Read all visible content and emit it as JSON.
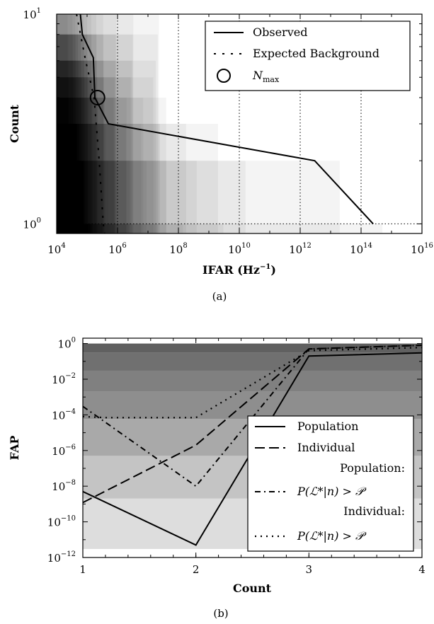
{
  "chart_data": [
    {
      "type": "line",
      "caption": "(a)",
      "xlabel": "IFAR (Hz",
      "xlabel_exp": "−1",
      "xlabel_close": ")",
      "ylabel": "Count",
      "x_scale": "log",
      "y_scale": "log",
      "xlim": [
        10000,
        1e+16
      ],
      "ylim": [
        0.9,
        10
      ],
      "x_ticks": [
        {
          "value": 10000,
          "base": "10",
          "exp": "4"
        },
        {
          "value": 1000000,
          "base": "10",
          "exp": "6"
        },
        {
          "value": 100000000,
          "base": "10",
          "exp": "8"
        },
        {
          "value": 10000000000,
          "base": "10",
          "exp": "10"
        },
        {
          "value": 1000000000000,
          "base": "10",
          "exp": "12"
        },
        {
          "value": 100000000000000,
          "base": "10",
          "exp": "14"
        },
        {
          "value": 1e+16,
          "base": "10",
          "exp": "16"
        }
      ],
      "y_ticks": [
        {
          "value": 1,
          "base": "10",
          "exp": "0"
        },
        {
          "value": 10,
          "base": "10",
          "exp": "1"
        }
      ],
      "vertical_dotted_lines": [
        1000000,
        100000000,
        10000000000,
        1000000000000,
        100000000000000
      ],
      "horizontal_dotted_lines": [
        1
      ],
      "background_bands": [
        {
          "x": [
            10000,
            50000,
            70000,
            80000,
            100000,
            130000,
            150000,
            190000,
            250000,
            330000,
            600000,
            1100000,
            2300000,
            6000000,
            20000000,
            140000000,
            3000000000,
            500000000000000
          ],
          "count_max": 1
        },
        {
          "x": [
            10000,
            40000,
            56000,
            67000,
            82000,
            100000,
            125000,
            155000,
            210000,
            310000,
            500000,
            1000000,
            2500000,
            9000000,
            40000000,
            400000000,
            16000000000,
            20000000000000
          ],
          "count_max": 2
        },
        {
          "x": [
            10000,
            33000,
            46000,
            56000,
            70000,
            85000,
            105000,
            135000,
            180000,
            260000,
            420000,
            800000,
            1900000,
            6000000,
            25000000,
            180000000,
            2000000000
          ],
          "count_max": 3
        },
        {
          "x": [
            10000,
            29000,
            40000,
            49000,
            60000,
            74000,
            92000,
            120000,
            160000,
            230000,
            380000,
            750000,
            2000000,
            7000000,
            40000000
          ],
          "count_max": 4
        },
        {
          "x": [
            10000,
            26000,
            37000,
            45000,
            56000,
            68000,
            86000,
            110000,
            150000,
            220000,
            360000,
            800000,
            2700000,
            15000000
          ],
          "count_max": 5
        },
        {
          "x": [
            10000,
            25000,
            35000,
            43000,
            53000,
            65000,
            82000,
            105000,
            145000,
            210000,
            350000,
            850000,
            3000000,
            18000000
          ],
          "count_max": 6
        },
        {
          "x": [
            10000,
            24000,
            34000,
            42000,
            51000,
            63000,
            80000,
            103000,
            140000,
            205000,
            345000,
            880000,
            3200000,
            21000000
          ],
          "count_max": 8
        },
        {
          "x": [
            10000,
            23000,
            33000,
            41000,
            50000,
            62000,
            78000,
            101000,
            138000,
            202000,
            340000,
            900000,
            3300000,
            23000000
          ],
          "count_max": 10
        }
      ],
      "series": [
        {
          "name": "Observed",
          "style": "solid",
          "points": [
            [
              60000,
              10
            ],
            [
              70000,
              8
            ],
            [
              160000,
              6.2
            ],
            [
              180000,
              4
            ],
            [
              500000,
              3
            ],
            [
              3000000000000,
              2
            ],
            [
              250000000000000,
              1
            ]
          ]
        },
        {
          "name": "Expected Background",
          "style": "dashed",
          "points": [
            [
              45000,
              10
            ],
            [
              90000,
              6
            ],
            [
              170000,
              4
            ],
            [
              250000,
              2
            ],
            [
              340000,
              1
            ],
            [
              380000,
              0.9
            ]
          ]
        }
      ],
      "marker": {
        "name": "N",
        "subscript": "max",
        "x": 220000,
        "y": 4,
        "shape": "circle"
      },
      "legend": {
        "placement": "top-right",
        "entries": [
          {
            "label": "Observed",
            "style": "solid"
          },
          {
            "label": "Expected Background",
            "style": "dashed"
          },
          {
            "label": "N",
            "label_sub": "max",
            "style": "circle"
          }
        ]
      }
    },
    {
      "type": "line",
      "caption": "(b)",
      "xlabel": "Count",
      "ylabel": "FAP",
      "y_scale": "log",
      "xlim": [
        1,
        4
      ],
      "ylim": [
        1e-12,
        2
      ],
      "x_ticks": [
        {
          "value": 1,
          "label": "1"
        },
        {
          "value": 2,
          "label": "2"
        },
        {
          "value": 3,
          "label": "3"
        },
        {
          "value": 4,
          "label": "4"
        }
      ],
      "y_ticks": [
        {
          "value": 1e-12,
          "base": "10",
          "exp": "−12"
        },
        {
          "value": 1e-10,
          "base": "10",
          "exp": "−10"
        },
        {
          "value": 1e-08,
          "base": "10",
          "exp": "−8"
        },
        {
          "value": 1e-06,
          "base": "10",
          "exp": "−6"
        },
        {
          "value": 0.0001,
          "base": "10",
          "exp": "−4"
        },
        {
          "value": 0.01,
          "base": "10",
          "exp": "−2"
        },
        {
          "value": 1,
          "base": "10",
          "exp": "0"
        }
      ],
      "background_bands": [
        {
          "y": [
            0.3,
            1
          ],
          "shade": "#606060"
        },
        {
          "y": [
            0.03,
            0.3
          ],
          "shade": "#707070"
        },
        {
          "y": [
            0.002,
            0.03
          ],
          "shade": "#808080"
        },
        {
          "y": [
            6e-05,
            0.002
          ],
          "shade": "#8e8e8e"
        },
        {
          "y": [
            5e-07,
            6e-05
          ],
          "shade": "#a9a9a9"
        },
        {
          "y": [
            2e-09,
            5e-07
          ],
          "shade": "#c4c4c4"
        },
        {
          "y": [
            3e-12,
            2e-09
          ],
          "shade": "#dddddd"
        }
      ],
      "series": [
        {
          "name": "Population",
          "style": "solid",
          "x": [
            1,
            2,
            3,
            4
          ],
          "values": [
            5e-09,
            5e-12,
            0.2,
            0.3
          ]
        },
        {
          "name": "Individual",
          "style": "dashed",
          "x": [
            1,
            2,
            3,
            4
          ],
          "values": [
            1.2e-09,
            2e-06,
            0.5,
            0.8
          ]
        },
        {
          "name": "Population: P(L*|n) > P",
          "style": "dashdot",
          "x": [
            1,
            2,
            3,
            4
          ],
          "values": [
            0.0003,
            1e-08,
            0.5,
            0.8
          ]
        },
        {
          "name": "Individual: P(L*|n) > P",
          "style": "dotted",
          "x": [
            1,
            1.2,
            2,
            3,
            4
          ],
          "values": [
            8e-05,
            7e-05,
            7e-05,
            0.4,
            0.6
          ]
        }
      ],
      "legend": {
        "placement": "lower-right",
        "entries": [
          {
            "label": "Population",
            "style": "solid"
          },
          {
            "label": "Individual",
            "style": "dashed"
          },
          {
            "header": "Population:",
            "formula": "P(ℒ*|n) > 𝒫",
            "style": "dashdot"
          },
          {
            "header": "Individual:",
            "formula": "P(ℒ*|n) > 𝒫",
            "style": "dotted"
          }
        ]
      }
    }
  ]
}
